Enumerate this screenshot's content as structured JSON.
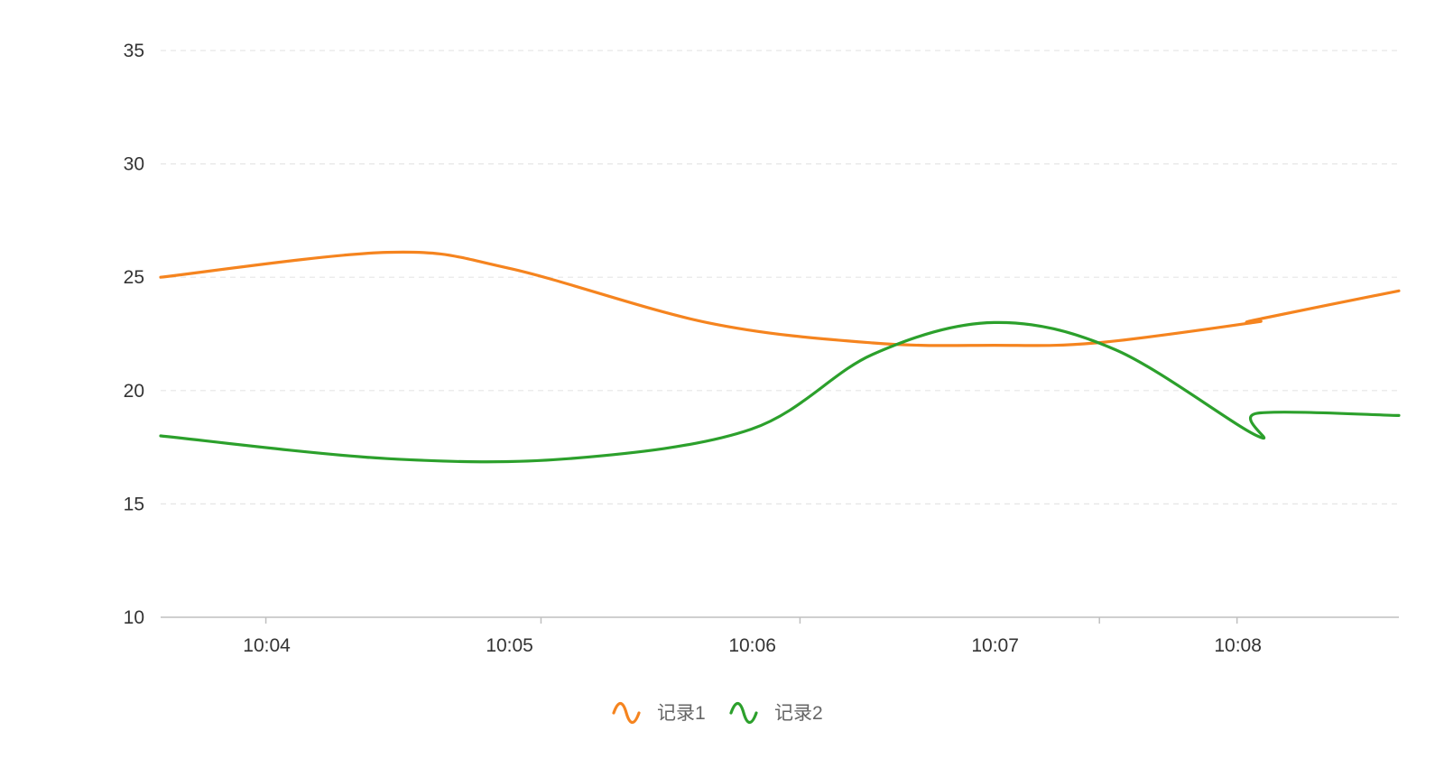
{
  "chart_data": {
    "type": "line",
    "smooth": true,
    "title": "",
    "xlabel": "",
    "ylabel": "",
    "ylim": [
      10,
      35
    ],
    "y_ticks": [
      10,
      15,
      20,
      25,
      30,
      35
    ],
    "y_tick_labels": [
      "10",
      "15",
      "20",
      "25",
      "30",
      "35"
    ],
    "x_range_minutes": [
      "10:03:34",
      "10:08:40"
    ],
    "x_ticks": [
      {
        "time": "10:04",
        "label": "10:04"
      },
      {
        "time": "10:05",
        "label": "10:05"
      },
      {
        "time": "10:06",
        "label": "10:06"
      },
      {
        "time": "10:07",
        "label": "10:07"
      },
      {
        "time": "10:08",
        "label": "10:08"
      }
    ],
    "x_axis_minor_ticks": [
      "10:04",
      "10:05:08",
      "10:06:12",
      "10:07:26",
      "10:08:00"
    ],
    "grid": {
      "horizontal": true,
      "style": "dashed"
    },
    "legend_position": "bottom-center",
    "series": [
      {
        "name": "记录1",
        "color": "#f5841f",
        "points": [
          {
            "x": "10:03:34",
            "y": 25.0
          },
          {
            "x": "10:04:30",
            "y": 26.1
          },
          {
            "x": "10:05:00",
            "y": 25.4
          },
          {
            "x": "10:05:49",
            "y": 23.0
          },
          {
            "x": "10:06:30",
            "y": 22.1
          },
          {
            "x": "10:07:00",
            "y": 22.0
          },
          {
            "x": "10:07:25",
            "y": 22.1
          },
          {
            "x": "10:08:04",
            "y": 23.0
          },
          {
            "x": "10:08:04",
            "y": 23.1
          },
          {
            "x": "10:08:40",
            "y": 24.4
          }
        ]
      },
      {
        "name": "记录2",
        "color": "#2ca02c",
        "points": [
          {
            "x": "10:03:34",
            "y": 18.0
          },
          {
            "x": "10:04:30",
            "y": 17.0
          },
          {
            "x": "10:05:15",
            "y": 17.0
          },
          {
            "x": "10:06:00",
            "y": 18.3
          },
          {
            "x": "10:06:30",
            "y": 21.6
          },
          {
            "x": "10:07:00",
            "y": 23.0
          },
          {
            "x": "10:07:30",
            "y": 21.8
          },
          {
            "x": "10:08:05",
            "y": 18.0
          },
          {
            "x": "10:08:05",
            "y": 19.0
          },
          {
            "x": "10:08:40",
            "y": 18.9
          }
        ]
      }
    ]
  }
}
